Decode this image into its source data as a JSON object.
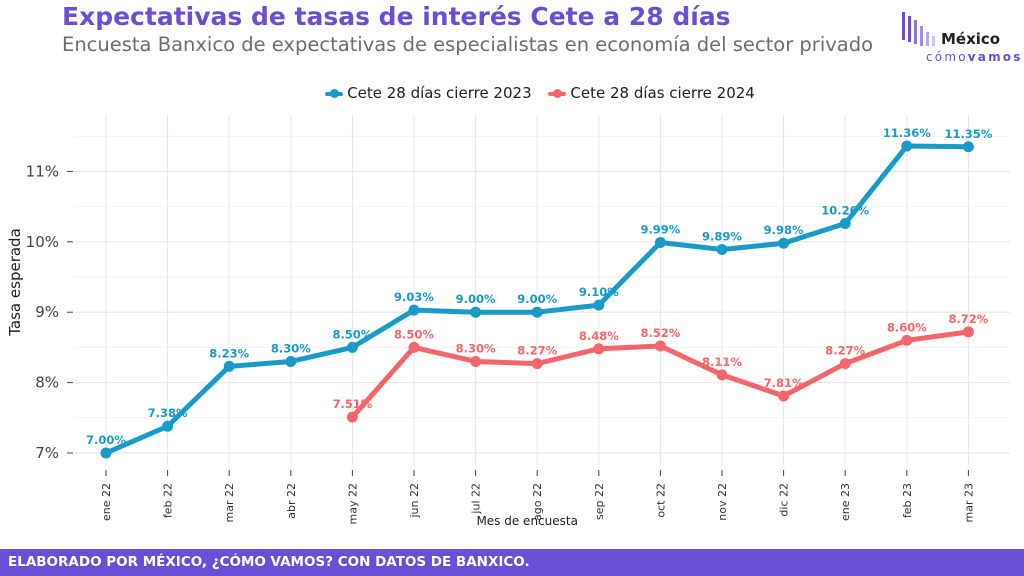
{
  "header": {
    "title": "Expectativas de tasas de interés Cete a 28 días",
    "subtitle": "Encuesta Banxico de expectativas de especialistas en economía del sector privado"
  },
  "logo": {
    "main": "México",
    "sub_light": "cómo",
    "sub_bold": "vamos"
  },
  "footer": {
    "text": "ELABORADO POR MÉXICO, ¿CÓMO VAMOS? CON DATOS DE BANXICO."
  },
  "chart_data": {
    "type": "line",
    "xlabel": "Mes de encuesta",
    "ylabel": "Tasa esperada",
    "categories": [
      "ene 22",
      "feb 22",
      "mar 22",
      "abr 22",
      "may 22",
      "jun 22",
      "jul 22",
      "ago 22",
      "sep 22",
      "oct 22",
      "nov 22",
      "dic 22",
      "ene 23",
      "feb 23",
      "mar 23"
    ],
    "ylim": [
      6.75,
      11.65
    ],
    "yticks": [
      7,
      8,
      9,
      10,
      11
    ],
    "ytick_labels": [
      "7%",
      "8%",
      "9%",
      "10%",
      "11%"
    ],
    "grid": true,
    "legend_position": "top",
    "series": [
      {
        "name": "Cete 28 días cierre 2023",
        "color": "#1a9bc7",
        "values": [
          7.0,
          7.38,
          8.23,
          8.3,
          8.5,
          9.03,
          9.0,
          9.0,
          9.1,
          9.99,
          9.89,
          9.98,
          10.26,
          11.36,
          11.35
        ],
        "labels": [
          "7.00%",
          "7.38%",
          "8.23%",
          "8.30%",
          "8.50%",
          "9.03%",
          "9.00%",
          "9.00%",
          "9.10%",
          "9.99%",
          "9.89%",
          "9.98%",
          "10.26%",
          "11.36%",
          "11.35%"
        ]
      },
      {
        "name": "Cete 28 días cierre 2024",
        "color": "#f4666a",
        "values": [
          null,
          null,
          null,
          null,
          7.51,
          8.5,
          8.3,
          8.27,
          8.48,
          8.52,
          8.11,
          7.81,
          8.27,
          8.6,
          8.72
        ],
        "labels": [
          null,
          null,
          null,
          null,
          "7.51%",
          "8.50%",
          "8.30%",
          "8.27%",
          "8.48%",
          "8.52%",
          "8.11%",
          "7.81%",
          "8.27%",
          "8.60%",
          "8.72%"
        ]
      }
    ]
  }
}
